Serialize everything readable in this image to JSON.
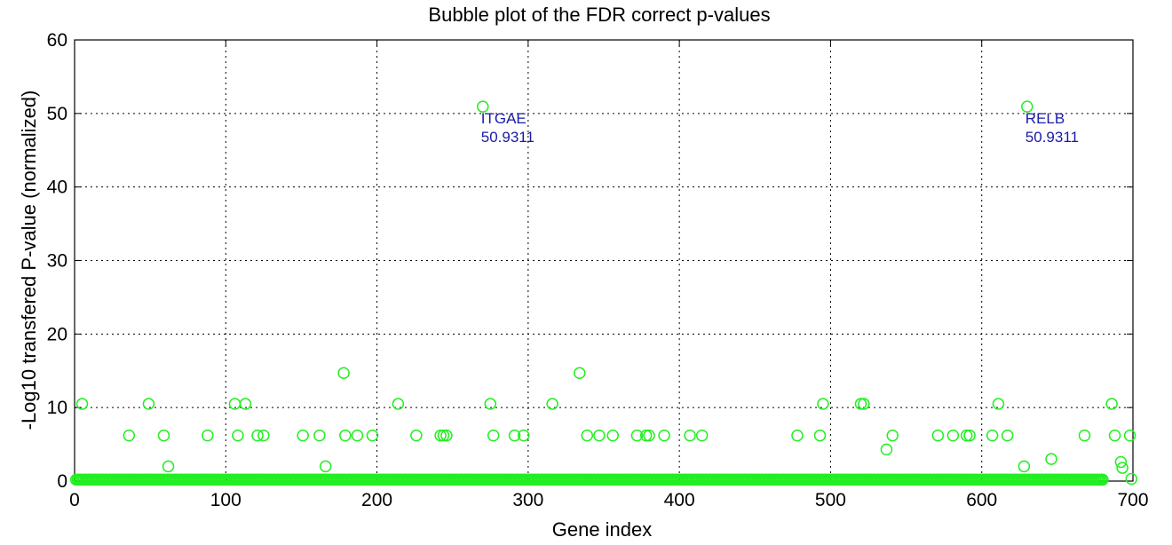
{
  "chart_data": {
    "type": "scatter",
    "title": "Bubble plot of the FDR correct p-values",
    "xlabel": "Gene index",
    "ylabel": "-Log10 transfered P-value (normalized)",
    "xlim": [
      0,
      700
    ],
    "ylim": [
      0,
      60
    ],
    "xticks": [
      0,
      100,
      200,
      300,
      400,
      500,
      600,
      700
    ],
    "yticks": [
      0,
      10,
      20,
      30,
      40,
      50,
      60
    ],
    "grid": true,
    "marker": "circle",
    "color": "#22ee22",
    "baseline_points": {
      "x_start": 1,
      "x_end": 680,
      "x_step": 1,
      "y": 0.2
    },
    "points": [
      {
        "x": 5,
        "y": 10.5
      },
      {
        "x": 36,
        "y": 6.2
      },
      {
        "x": 49,
        "y": 10.5
      },
      {
        "x": 59,
        "y": 6.2
      },
      {
        "x": 62,
        "y": 2.0
      },
      {
        "x": 88,
        "y": 6.2
      },
      {
        "x": 106,
        "y": 10.5
      },
      {
        "x": 108,
        "y": 6.2
      },
      {
        "x": 113,
        "y": 10.5
      },
      {
        "x": 121,
        "y": 6.2
      },
      {
        "x": 125,
        "y": 6.2
      },
      {
        "x": 151,
        "y": 6.2
      },
      {
        "x": 162,
        "y": 6.2
      },
      {
        "x": 166,
        "y": 2.0
      },
      {
        "x": 178,
        "y": 14.7
      },
      {
        "x": 179,
        "y": 6.2
      },
      {
        "x": 187,
        "y": 6.2
      },
      {
        "x": 197,
        "y": 6.2
      },
      {
        "x": 214,
        "y": 10.5
      },
      {
        "x": 226,
        "y": 6.2
      },
      {
        "x": 242,
        "y": 6.2
      },
      {
        "x": 244,
        "y": 6.2
      },
      {
        "x": 246,
        "y": 6.2
      },
      {
        "x": 270,
        "y": 50.9311
      },
      {
        "x": 275,
        "y": 10.5
      },
      {
        "x": 277,
        "y": 6.2
      },
      {
        "x": 291,
        "y": 6.2
      },
      {
        "x": 297,
        "y": 6.2
      },
      {
        "x": 316,
        "y": 10.5
      },
      {
        "x": 334,
        "y": 14.7
      },
      {
        "x": 339,
        "y": 6.2
      },
      {
        "x": 347,
        "y": 6.2
      },
      {
        "x": 356,
        "y": 6.2
      },
      {
        "x": 372,
        "y": 6.2
      },
      {
        "x": 378,
        "y": 6.2
      },
      {
        "x": 380,
        "y": 6.2
      },
      {
        "x": 390,
        "y": 6.2
      },
      {
        "x": 407,
        "y": 6.2
      },
      {
        "x": 415,
        "y": 6.2
      },
      {
        "x": 478,
        "y": 6.2
      },
      {
        "x": 493,
        "y": 6.2
      },
      {
        "x": 495,
        "y": 10.5
      },
      {
        "x": 520,
        "y": 10.5
      },
      {
        "x": 522,
        "y": 10.5
      },
      {
        "x": 537,
        "y": 4.3
      },
      {
        "x": 541,
        "y": 6.2
      },
      {
        "x": 571,
        "y": 6.2
      },
      {
        "x": 581,
        "y": 6.2
      },
      {
        "x": 590,
        "y": 6.2
      },
      {
        "x": 592,
        "y": 6.2
      },
      {
        "x": 607,
        "y": 6.2
      },
      {
        "x": 611,
        "y": 10.5
      },
      {
        "x": 617,
        "y": 6.2
      },
      {
        "x": 628,
        "y": 2.0
      },
      {
        "x": 630,
        "y": 50.9311
      },
      {
        "x": 646,
        "y": 3.0
      },
      {
        "x": 668,
        "y": 6.2
      },
      {
        "x": 686,
        "y": 10.5
      },
      {
        "x": 688,
        "y": 6.2
      },
      {
        "x": 692,
        "y": 2.6
      },
      {
        "x": 693,
        "y": 1.8
      },
      {
        "x": 698,
        "y": 6.2
      },
      {
        "x": 699,
        "y": 0.3
      }
    ],
    "annotations": [
      {
        "x": 270,
        "y": 50.9311,
        "label": "ITGAE",
        "value": "50.9311"
      },
      {
        "x": 630,
        "y": 50.9311,
        "label": "RELB",
        "value": "50.9311"
      }
    ]
  }
}
